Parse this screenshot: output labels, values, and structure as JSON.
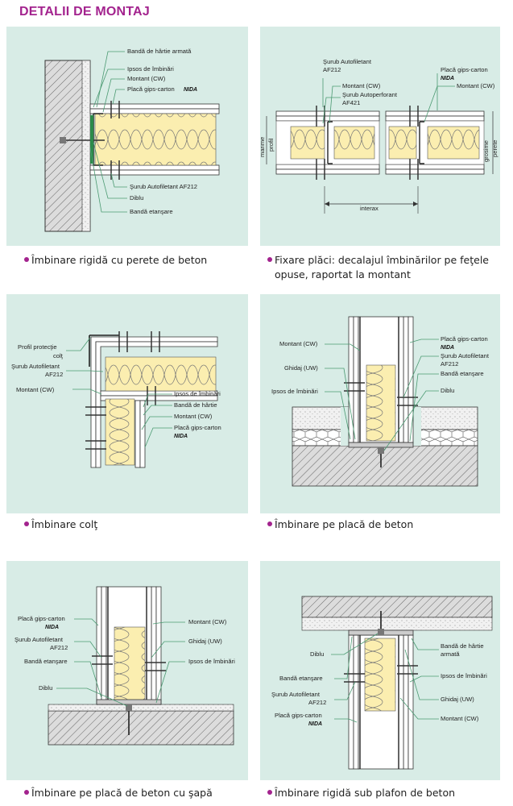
{
  "title": "DETALII DE MONTAJ",
  "brand": "NIDA",
  "accent_color": "#a3238e",
  "panel_color": "#d8ece6",
  "panels": [
    {
      "caption": "Îmbinare rigidă cu perete de beton",
      "labels": {
        "banda_hartie": "Bandă de hârtie armată",
        "ipsos": "Ipsos de îmbinări",
        "montant": "Montant (CW)",
        "placa": "Placă gips-carton",
        "surub": "Şurub Autofiletant AF212",
        "diblu": "Diblu",
        "banda_etansare": "Bandă etanşare"
      }
    },
    {
      "caption_line1": "Fixare plăci: decalajul îmbinărilor pe feţele",
      "caption_line2": "opuse, raportat la montant",
      "labels": {
        "surub1": "Şurub Autofiletant",
        "surub2": "AF212",
        "montant": "Montant (CW)",
        "surub_ap1": "Şurub Autoperforant",
        "surub_ap2": "AF421",
        "placa": "Placă gips-carton",
        "montant2": "Montant (CW)",
        "marime": "marime",
        "profil": "profil",
        "grosime": "grosime",
        "perete": "perete",
        "interax": "interax"
      }
    },
    {
      "caption": "Îmbinare colţ",
      "labels": {
        "profil1": "Profil protecţie",
        "profil2": "colţ",
        "surub1": "Şurub Autofiletant",
        "surub2": "AF212",
        "montant": "Montant (CW)",
        "ipsos": "Ipsos de îmbinări",
        "banda": "Bandă de hârtie",
        "montant2": "Montant (CW)",
        "placa": "Placă gips-carton"
      }
    },
    {
      "caption": "Îmbinare pe placă de beton",
      "labels": {
        "montant": "Montant (CW)",
        "ghidaj": "Ghidaj (UW)",
        "ipsos": "Ipsos de îmbinări",
        "placa": "Placă gips-carton",
        "surub1": "Şurub Autofiletant",
        "surub2": "AF212",
        "banda": "Bandă etanşare",
        "diblu": "Diblu"
      }
    },
    {
      "caption": "Îmbinare pe placă de beton cu şapă",
      "labels": {
        "placa": "Placă gips-carton",
        "surub1": "Şurub Autofiletant",
        "surub2": "AF212",
        "banda": "Bandă etanşare",
        "diblu": "Diblu",
        "montant": "Montant (CW)",
        "ghidaj": "Ghidaj (UW)",
        "ipsos": "Ipsos de îmbinări"
      }
    },
    {
      "caption": "Îmbinare rigidă sub plafon de beton",
      "labels": {
        "diblu": "Diblu",
        "banda_etansare": "Bandă etanşare",
        "surub1": "Şurub Autofiletant",
        "surub2": "AF212",
        "placa": "Placă gips-carton",
        "banda_hartie1": "Bandă de hârtie",
        "banda_hartie2": "armată",
        "ipsos": "Ipsos de îmbinări",
        "ghidaj": "Ghidaj (UW)",
        "montant": "Montant (CW)"
      }
    }
  ]
}
